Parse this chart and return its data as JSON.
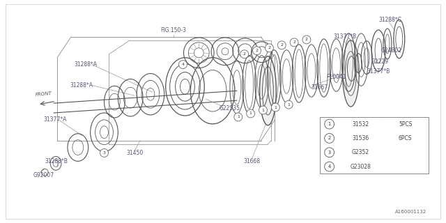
{
  "bg_color": "#ffffff",
  "line_color": "#555555",
  "text_color": "#444444",
  "label_color": "#555577",
  "doc_num": "A160001132",
  "legend_items": [
    {
      "num": "1",
      "code": "31532",
      "qty": "5PCS"
    },
    {
      "num": "2",
      "code": "31536",
      "qty": "6PCS"
    },
    {
      "num": "3",
      "code": "G2352",
      "qty": ""
    },
    {
      "num": "4",
      "code": "G23028",
      "qty": ""
    }
  ]
}
